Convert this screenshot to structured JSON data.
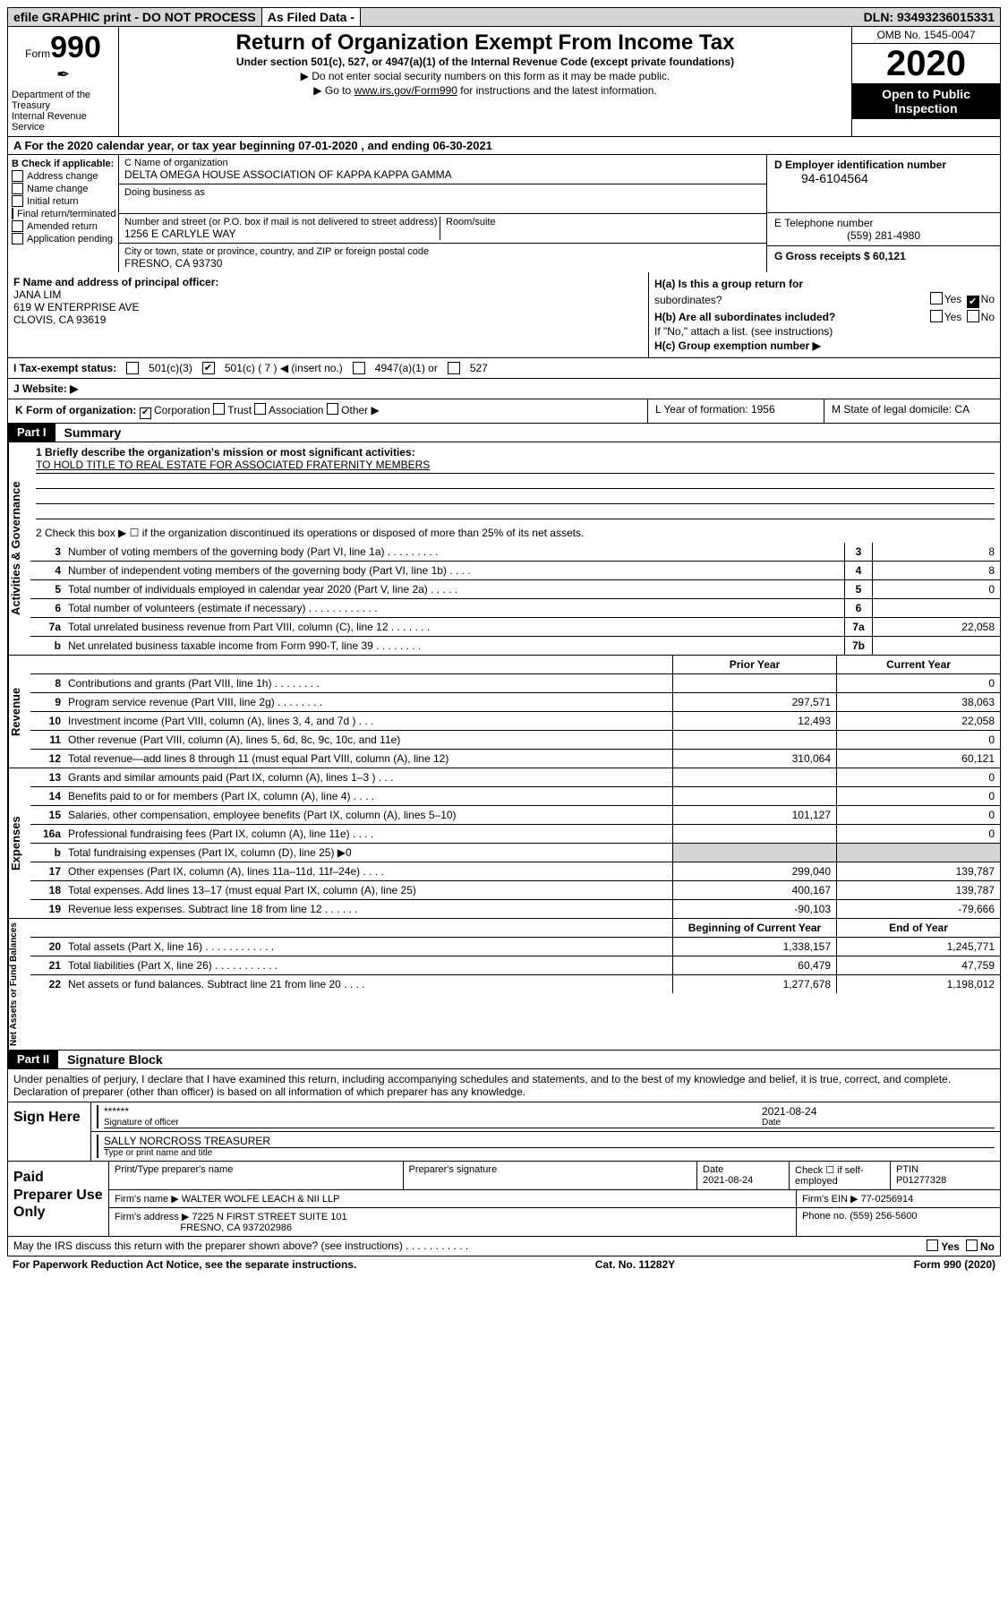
{
  "topbar": {
    "efile": "efile GRAPHIC print - DO NOT PROCESS",
    "asfiled": "As Filed Data -",
    "dln": "DLN: 93493236015331"
  },
  "header": {
    "form": "Form",
    "formnum": "990",
    "dept": "Department of the Treasury\nInternal Revenue Service",
    "title": "Return of Organization Exempt From Income Tax",
    "sub": "Under section 501(c), 527, or 4947(a)(1) of the Internal Revenue Code (except private foundations)",
    "note1": "▶ Do not enter social security numbers on this form as it may be made public.",
    "note2_pre": "▶ Go to ",
    "note2_link": "www.irs.gov/Form990",
    "note2_post": " for instructions and the latest information.",
    "omb": "OMB No. 1545-0047",
    "year": "2020",
    "open": "Open to Public Inspection"
  },
  "rowA": "A   For the 2020 calendar year, or tax year beginning 07-01-2020    , and ending 06-30-2021",
  "boxB": {
    "label": "B Check if applicable:",
    "items": [
      "Address change",
      "Name change",
      "Initial return",
      "Final return/terminated",
      "Amended return",
      "Application pending"
    ]
  },
  "boxC": {
    "nameLabel": "C Name of organization",
    "name": "DELTA OMEGA HOUSE ASSOCIATION OF KAPPA KAPPA GAMMA",
    "dba": "Doing business as",
    "streetLabel": "Number and street (or P.O. box if mail is not delivered to street address)",
    "street": "1256 E CARLYLE WAY",
    "room": "Room/suite",
    "cityLabel": "City or town, state or province, country, and ZIP or foreign postal code",
    "city": "FRESNO, CA  93730"
  },
  "boxD": {
    "label": "D Employer identification number",
    "val": "94-6104564"
  },
  "boxE": {
    "label": "E Telephone number",
    "val": "(559) 281-4980"
  },
  "boxG": {
    "label": "G Gross receipts $ 60,121"
  },
  "boxF": {
    "label": "F  Name and address of principal officer:",
    "name": "JANA LIM",
    "addr1": "619 W ENTERPRISE AVE",
    "addr2": "CLOVIS, CA  93619"
  },
  "boxH": {
    "a_label": "H(a)  Is this a group return for",
    "a_sub": "subordinates?",
    "b_label": "H(b)  Are all subordinates included?",
    "b_note": "If \"No,\" attach a list. (see instructions)",
    "c_label": "H(c)  Group exemption number ▶",
    "yes": "Yes",
    "no": "No"
  },
  "rowI": {
    "label": "I   Tax-exempt status:",
    "o1": "501(c)(3)",
    "o2": "501(c) ( 7 ) ◀ (insert no.)",
    "o3": "4947(a)(1) or",
    "o4": "527"
  },
  "rowJ": "J   Website: ▶",
  "rowK": {
    "label": "K Form of organization:",
    "opts": [
      "Corporation",
      "Trust",
      "Association",
      "Other ▶"
    ]
  },
  "lm": {
    "l": "L Year of formation: 1956",
    "m": "M State of legal domicile: CA"
  },
  "part1": {
    "tab": "Part I",
    "title": "Summary"
  },
  "gov": {
    "label": "Activities & Governance",
    "l1": "1 Briefly describe the organization's mission or most significant activities:",
    "mission": "TO HOLD TITLE TO REAL ESTATE FOR ASSOCIATED FRATERNITY MEMBERS",
    "l2": "2   Check this box ▶ ☐ if the organization discontinued its operations or disposed of more than 25% of its net assets.",
    "rows": [
      {
        "n": "3",
        "t": "Number of voting members of the governing body (Part VI, line 1a)  .   .   .   .   .   .   .   .   .",
        "b": "3",
        "v": "8"
      },
      {
        "n": "4",
        "t": "Number of independent voting members of the governing body (Part VI, line 1b)   .   .   .   .",
        "b": "4",
        "v": "8"
      },
      {
        "n": "5",
        "t": "Total number of individuals employed in calendar year 2020 (Part V, line 2a)   .   .   .   .   .",
        "b": "5",
        "v": "0"
      },
      {
        "n": "6",
        "t": "Total number of volunteers (estimate if necessary)   .   .   .   .   .   .   .   .   .   .   .   .",
        "b": "6",
        "v": ""
      },
      {
        "n": "7a",
        "t": "Total unrelated business revenue from Part VIII, column (C), line 12   .   .   .   .   .   .   .",
        "b": "7a",
        "v": "22,058"
      },
      {
        "n": "b",
        "t": "Net unrelated business taxable income from Form 990-T, line 39   .   .   .   .   .   .   .   .",
        "b": "7b",
        "v": ""
      }
    ]
  },
  "rev": {
    "label": "Revenue",
    "hdr_prior": "Prior Year",
    "hdr_cur": "Current Year",
    "rows": [
      {
        "n": "8",
        "t": "Contributions and grants (Part VIII, line 1h)   .   .   .   .   .   .   .   .",
        "p": "",
        "c": "0"
      },
      {
        "n": "9",
        "t": "Program service revenue (Part VIII, line 2g)   .   .   .   .   .   .   .   .",
        "p": "297,571",
        "c": "38,063"
      },
      {
        "n": "10",
        "t": "Investment income (Part VIII, column (A), lines 3, 4, and 7d )   .   .   .",
        "p": "12,493",
        "c": "22,058"
      },
      {
        "n": "11",
        "t": "Other revenue (Part VIII, column (A), lines 5, 6d, 8c, 9c, 10c, and 11e)",
        "p": "",
        "c": "0"
      },
      {
        "n": "12",
        "t": "Total revenue—add lines 8 through 11 (must equal Part VIII, column (A), line 12)",
        "p": "310,064",
        "c": "60,121"
      }
    ]
  },
  "exp": {
    "label": "Expenses",
    "rows": [
      {
        "n": "13",
        "t": "Grants and similar amounts paid (Part IX, column (A), lines 1–3 )   .   .   .",
        "p": "",
        "c": "0"
      },
      {
        "n": "14",
        "t": "Benefits paid to or for members (Part IX, column (A), line 4)   .   .   .   .",
        "p": "",
        "c": "0"
      },
      {
        "n": "15",
        "t": "Salaries, other compensation, employee benefits (Part IX, column (A), lines 5–10)",
        "p": "101,127",
        "c": "0"
      },
      {
        "n": "16a",
        "t": "Professional fundraising fees (Part IX, column (A), line 11e)   .   .   .   .",
        "p": "",
        "c": "0"
      },
      {
        "n": "b",
        "t": "Total fundraising expenses (Part IX, column (D), line 25) ▶0",
        "p": "GRAY",
        "c": "GRAY"
      },
      {
        "n": "17",
        "t": "Other expenses (Part IX, column (A), lines 11a–11d, 11f–24e)   .   .   .   .",
        "p": "299,040",
        "c": "139,787"
      },
      {
        "n": "18",
        "t": "Total expenses. Add lines 13–17 (must equal Part IX, column (A), line 25)",
        "p": "400,167",
        "c": "139,787"
      },
      {
        "n": "19",
        "t": "Revenue less expenses. Subtract line 18 from line 12   .   .   .   .   .   .",
        "p": "-90,103",
        "c": "-79,666"
      }
    ]
  },
  "net": {
    "label": "Net Assets or Fund Balances",
    "hdr_b": "Beginning of Current Year",
    "hdr_e": "End of Year",
    "rows": [
      {
        "n": "20",
        "t": "Total assets (Part X, line 16)   .   .   .   .   .   .   .   .   .   .   .   .",
        "p": "1,338,157",
        "c": "1,245,771"
      },
      {
        "n": "21",
        "t": "Total liabilities (Part X, line 26)   .   .   .   .   .   .   .   .   .   .   .",
        "p": "60,479",
        "c": "47,759"
      },
      {
        "n": "22",
        "t": "Net assets or fund balances. Subtract line 21 from line 20   .   .   .   .",
        "p": "1,277,678",
        "c": "1,198,012"
      }
    ]
  },
  "part2": {
    "tab": "Part II",
    "title": "Signature Block"
  },
  "penalty": "Under penalties of perjury, I declare that I have examined this return, including accompanying schedules and statements, and to the best of my knowledge and belief, it is true, correct, and complete. Declaration of preparer (other than officer) is based on all information of which preparer has any knowledge.",
  "sign": {
    "here": "Sign Here",
    "stars": "******",
    "sigof": "Signature of officer",
    "date": "2021-08-24",
    "datelbl": "Date",
    "name": "SALLY NORCROSS TREASURER",
    "namelbl": "Type or print name and title"
  },
  "prep": {
    "here": "Paid Preparer Use Only",
    "h1": "Print/Type preparer's name",
    "h2": "Preparer's signature",
    "h3": "Date",
    "date": "2021-08-24",
    "h4": "Check ☐ if self-employed",
    "h5": "PTIN",
    "ptin": "P01277328",
    "firm_lbl": "Firm's name    ▶",
    "firm": "WALTER WOLFE LEACH & NII LLP",
    "ein_lbl": "Firm's EIN ▶",
    "ein": "77-0256914",
    "addr_lbl": "Firm's address ▶",
    "addr1": "7225 N FIRST STREET SUITE 101",
    "addr2": "FRESNO, CA  937202986",
    "phone_lbl": "Phone no.",
    "phone": "(559) 256-5600"
  },
  "footer": {
    "q": "May the IRS discuss this return with the preparer shown above? (see instructions)   .   .   .   .   .   .   .   .   .   .   .",
    "yes": "Yes",
    "no": "No",
    "pra": "For Paperwork Reduction Act Notice, see the separate instructions.",
    "cat": "Cat. No. 11282Y",
    "form": "Form 990 (2020)"
  }
}
